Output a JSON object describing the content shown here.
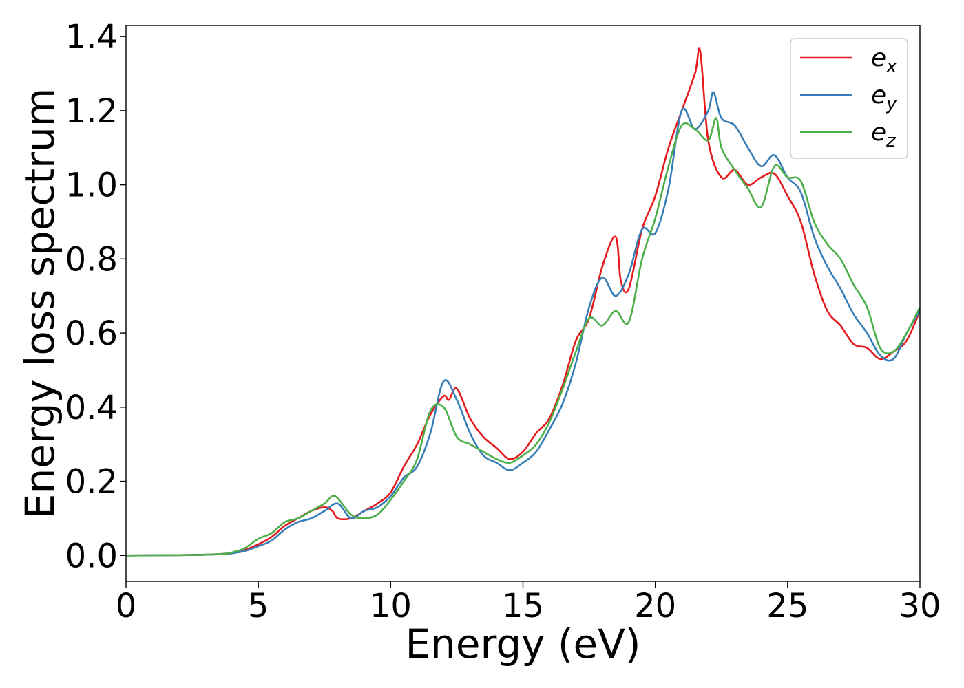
{
  "chart_data": {
    "type": "line",
    "title": "",
    "xlabel": "Energy (eV)",
    "ylabel": "Energy loss spectrum",
    "xlim": [
      0,
      30
    ],
    "ylim": [
      -0.07,
      1.43
    ],
    "xticks": [
      0,
      5,
      10,
      15,
      20,
      25,
      30
    ],
    "xtick_labels": [
      "0",
      "5",
      "10",
      "15",
      "20",
      "25",
      "30"
    ],
    "yticks": [
      0.0,
      0.2,
      0.4,
      0.6,
      0.8,
      1.0,
      1.2,
      1.4
    ],
    "ytick_labels": [
      "0.0",
      "0.2",
      "0.4",
      "0.6",
      "0.8",
      "1.0",
      "1.2",
      "1.4"
    ],
    "grid": false,
    "legend_position": "top-right",
    "series": [
      {
        "name": "e_x",
        "label_main": "e",
        "label_sub": "x",
        "color": "#e41a1c",
        "x": [
          0,
          2,
          3,
          3.8,
          4.2,
          4.5,
          5,
          5.5,
          6,
          6.5,
          7,
          7.5,
          7.8,
          8,
          8.5,
          9,
          9.5,
          10,
          10.5,
          11,
          11.5,
          12,
          12.2,
          12.5,
          13,
          13.5,
          14,
          14.5,
          15,
          15.5,
          16,
          16.5,
          17,
          17.5,
          18,
          18.5,
          18.7,
          19,
          19.5,
          20,
          20.5,
          21,
          21.5,
          21.7,
          22,
          22.5,
          23,
          23.5,
          24,
          24.5,
          25,
          25.5,
          26,
          26.5,
          27,
          27.5,
          28,
          28.5,
          29,
          29.5,
          30
        ],
        "y": [
          0,
          0.001,
          0.002,
          0.005,
          0.01,
          0.015,
          0.03,
          0.05,
          0.08,
          0.1,
          0.12,
          0.13,
          0.12,
          0.1,
          0.1,
          0.12,
          0.14,
          0.17,
          0.24,
          0.3,
          0.38,
          0.43,
          0.42,
          0.45,
          0.37,
          0.32,
          0.29,
          0.26,
          0.28,
          0.33,
          0.37,
          0.46,
          0.58,
          0.64,
          0.78,
          0.86,
          0.74,
          0.72,
          0.88,
          0.97,
          1.1,
          1.2,
          1.3,
          1.36,
          1.12,
          1.02,
          1.04,
          1.0,
          1.02,
          1.03,
          0.97,
          0.9,
          0.76,
          0.66,
          0.62,
          0.57,
          0.56,
          0.53,
          0.55,
          0.58,
          0.66
        ]
      },
      {
        "name": "e_y",
        "label_main": "e",
        "label_sub": "y",
        "color": "#377eb8",
        "x": [
          0,
          2,
          3,
          3.8,
          4.2,
          4.5,
          5,
          5.5,
          6,
          6.5,
          7,
          7.5,
          8,
          8.5,
          9,
          9.5,
          10,
          10.5,
          11,
          11.5,
          12,
          12.5,
          13,
          13.5,
          14,
          14.5,
          15,
          15.5,
          16,
          16.5,
          17,
          17.5,
          18,
          18.5,
          19,
          19.5,
          20,
          20.5,
          21,
          21.5,
          22,
          22.2,
          22.5,
          23,
          23.5,
          24,
          24.5,
          25,
          25.5,
          26,
          26.5,
          27,
          27.5,
          28,
          28.5,
          29,
          29.5,
          30
        ],
        "y": [
          0,
          0.001,
          0.002,
          0.004,
          0.008,
          0.012,
          0.025,
          0.04,
          0.07,
          0.09,
          0.1,
          0.12,
          0.14,
          0.1,
          0.12,
          0.13,
          0.16,
          0.21,
          0.24,
          0.33,
          0.47,
          0.42,
          0.33,
          0.27,
          0.25,
          0.23,
          0.25,
          0.28,
          0.34,
          0.41,
          0.52,
          0.67,
          0.75,
          0.7,
          0.76,
          0.88,
          0.87,
          0.99,
          1.2,
          1.15,
          1.2,
          1.25,
          1.18,
          1.16,
          1.1,
          1.05,
          1.08,
          1.02,
          0.98,
          0.86,
          0.78,
          0.72,
          0.65,
          0.6,
          0.54,
          0.53,
          0.6,
          0.66
        ]
      },
      {
        "name": "e_z",
        "label_main": "e",
        "label_sub": "z",
        "color": "#4daf4a",
        "x": [
          0,
          2,
          3,
          3.8,
          4.2,
          4.5,
          5,
          5.5,
          6,
          6.5,
          7,
          7.5,
          7.9,
          8.5,
          9,
          9.5,
          10,
          10.5,
          11,
          11.5,
          12,
          12.5,
          13,
          13.5,
          14,
          14.5,
          15,
          15.5,
          16,
          16.5,
          17,
          17.5,
          18,
          18.5,
          19,
          19.5,
          20,
          20.5,
          21,
          21.5,
          22,
          22.3,
          22.5,
          23,
          23.5,
          24,
          24.5,
          25,
          25.5,
          26,
          26.5,
          27,
          27.5,
          28,
          28.5,
          29,
          29.5,
          30
        ],
        "y": [
          0,
          0.001,
          0.002,
          0.005,
          0.012,
          0.02,
          0.045,
          0.06,
          0.09,
          0.1,
          0.12,
          0.14,
          0.16,
          0.11,
          0.1,
          0.11,
          0.15,
          0.2,
          0.26,
          0.39,
          0.4,
          0.32,
          0.3,
          0.28,
          0.26,
          0.25,
          0.27,
          0.3,
          0.36,
          0.45,
          0.55,
          0.64,
          0.62,
          0.66,
          0.63,
          0.8,
          0.91,
          1.05,
          1.16,
          1.15,
          1.12,
          1.18,
          1.1,
          1.04,
          0.99,
          0.94,
          1.05,
          1.02,
          1.01,
          0.9,
          0.84,
          0.8,
          0.73,
          0.67,
          0.56,
          0.55,
          0.6,
          0.67
        ]
      }
    ]
  }
}
